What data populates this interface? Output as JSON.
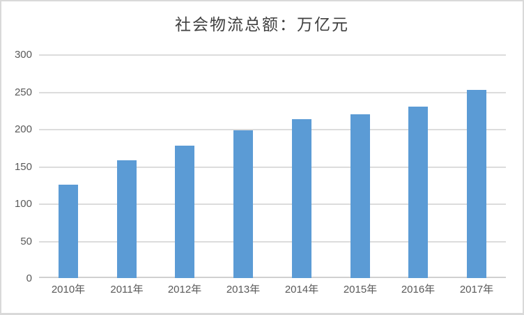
{
  "chart_data": {
    "type": "bar",
    "title": "社会物流总额：万亿元",
    "categories": [
      "2010年",
      "2011年",
      "2012年",
      "2013年",
      "2014年",
      "2015年",
      "2016年",
      "2017年"
    ],
    "values": [
      125.4,
      158.4,
      177.3,
      197.8,
      213.5,
      219.2,
      229.7,
      252.8
    ],
    "xlabel": "",
    "ylabel": "",
    "ylim": [
      0,
      300
    ],
    "yticks": [
      0,
      50,
      100,
      150,
      200,
      250,
      300
    ],
    "grid": true,
    "legend_position": "none",
    "colors": {
      "bar": "#5B9BD5",
      "gridline": "#DCDCDC",
      "axis_line": "#D0D0D0",
      "tick_label": "#595959",
      "title": "#404040",
      "frame_border": "#D9D9D9",
      "background": "#FFFFFF"
    }
  }
}
